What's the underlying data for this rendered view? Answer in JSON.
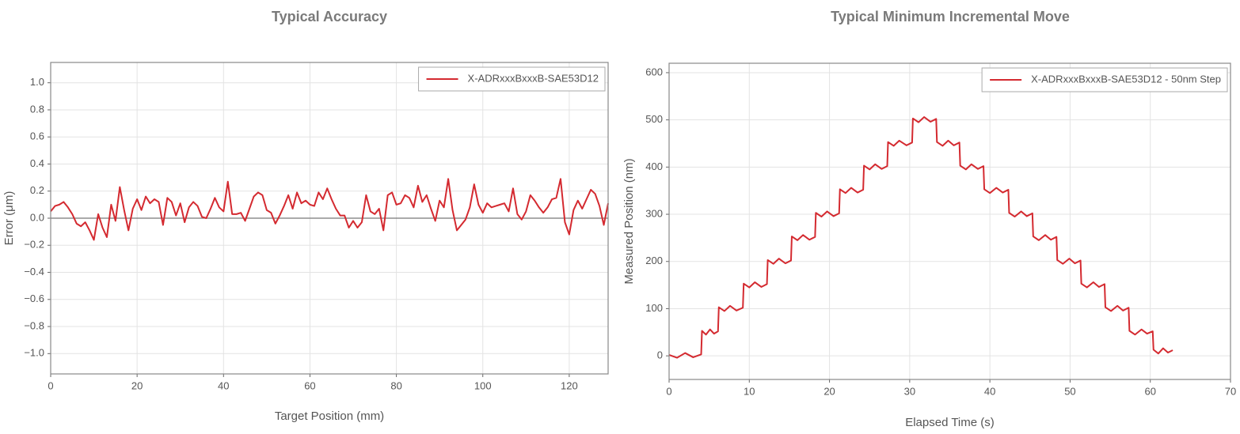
{
  "chart_data": [
    {
      "type": "line",
      "title": "Typical Accuracy",
      "x_label": "Target Position (mm)",
      "y_label": "Error (μm)",
      "xlim": [
        0,
        129
      ],
      "ylim": [
        -1.15,
        1.15
      ],
      "xticks": [
        0,
        20,
        40,
        60,
        80,
        100,
        120
      ],
      "yticks": [
        {
          "value": -1,
          "label": "−1.0"
        },
        {
          "value": -0.8,
          "label": "−0.8"
        },
        {
          "value": -0.6,
          "label": "−0.6"
        },
        {
          "value": -0.4,
          "label": "−0.4"
        },
        {
          "value": -0.2,
          "label": "−0.2"
        },
        {
          "value": 0,
          "label": "0.0"
        },
        0.2,
        0.4,
        0.6,
        0.8,
        {
          "value": 1,
          "label": "1.0"
        }
      ],
      "grid": true,
      "zero_line": true,
      "legend": "upper right",
      "x": [
        0,
        1,
        2,
        3,
        4,
        5,
        6,
        7,
        8,
        9,
        10,
        11,
        12,
        13,
        14,
        15,
        16,
        17,
        18,
        19,
        20,
        21,
        22,
        23,
        24,
        25,
        26,
        27,
        28,
        29,
        30,
        31,
        32,
        33,
        34,
        35,
        36,
        37,
        38,
        39,
        40,
        41,
        42,
        43,
        44,
        45,
        46,
        47,
        48,
        49,
        50,
        51,
        52,
        53,
        54,
        55,
        56,
        57,
        58,
        59,
        60,
        61,
        62,
        63,
        64,
        65,
        66,
        67,
        68,
        69,
        70,
        71,
        72,
        73,
        74,
        75,
        76,
        77,
        78,
        79,
        80,
        81,
        82,
        83,
        84,
        85,
        86,
        87,
        88,
        89,
        90,
        91,
        92,
        93,
        94,
        95,
        96,
        97,
        98,
        99,
        100,
        101,
        102,
        103,
        104,
        105,
        106,
        107,
        108,
        109,
        110,
        111,
        112,
        113,
        114,
        115,
        116,
        117,
        118,
        119,
        120,
        121,
        122,
        123,
        124,
        125,
        126,
        127,
        128,
        129
      ],
      "series": [
        {
          "name": "X-ADRxxxBxxxB-SAE53D12",
          "color": "#d42a30",
          "values": [
            0.05,
            0.09,
            0.1,
            0.12,
            0.08,
            0.03,
            -0.04,
            -0.06,
            -0.03,
            -0.09,
            -0.16,
            0.03,
            -0.07,
            -0.14,
            0.1,
            -0.02,
            0.23,
            0.06,
            -0.09,
            0.07,
            0.14,
            0.06,
            0.16,
            0.11,
            0.14,
            0.12,
            -0.05,
            0.15,
            0.12,
            0.02,
            0.11,
            -0.03,
            0.08,
            0.12,
            0.09,
            0.01,
            0,
            0.07,
            0.15,
            0.08,
            0.05,
            0.27,
            0.03,
            0.03,
            0.04,
            -0.02,
            0.07,
            0.16,
            0.19,
            0.17,
            0.06,
            0.04,
            -0.04,
            0.02,
            0.09,
            0.17,
            0.07,
            0.19,
            0.11,
            0.13,
            0.1,
            0.09,
            0.19,
            0.14,
            0.22,
            0.14,
            0.07,
            0.02,
            0.02,
            -0.07,
            -0.02,
            -0.07,
            -0.03,
            0.17,
            0.05,
            0.03,
            0.07,
            -0.09,
            0.17,
            0.19,
            0.1,
            0.11,
            0.17,
            0.15,
            0.08,
            0.24,
            0.12,
            0.17,
            0.07,
            -0.02,
            0.13,
            0.08,
            0.29,
            0.06,
            -0.09,
            -0.05,
            -0.01,
            0.08,
            0.25,
            0.1,
            0.04,
            0.11,
            0.08,
            0.09,
            0.1,
            0.11,
            0.05,
            0.22,
            0.03,
            -0.01,
            0.05,
            0.17,
            0.13,
            0.08,
            0.04,
            0.08,
            0.14,
            0.15,
            0.29,
            -0.03,
            -0.12,
            0.06,
            0.13,
            0.07,
            0.14,
            0.21,
            0.18,
            0.09,
            -0.05,
            0.11
          ]
        }
      ]
    },
    {
      "type": "line",
      "title": "Typical Minimum Incremental Move",
      "x_label": "Elapsed Time (s)",
      "y_label": "Measured Position (nm)",
      "xlim": [
        0,
        70
      ],
      "ylim": [
        -50,
        620
      ],
      "xticks": [
        0,
        10,
        20,
        30,
        40,
        50,
        60,
        70
      ],
      "yticks": [
        0,
        100,
        200,
        300,
        400,
        500,
        600
      ],
      "grid": true,
      "zero_line": false,
      "legend": "upper right",
      "x": [
        0,
        1,
        2,
        3,
        4.0,
        4.1,
        4.6,
        5.1,
        5.6,
        6.1,
        6.2,
        6.9,
        7.6,
        8.4,
        9.2,
        9.3,
        10.0,
        10.7,
        11.5,
        12.2,
        12.3,
        13.0,
        13.7,
        14.5,
        15.2,
        15.3,
        16.0,
        16.7,
        17.5,
        18.2,
        18.3,
        19.0,
        19.7,
        20.5,
        21.2,
        21.3,
        22.0,
        22.7,
        23.5,
        24.2,
        24.3,
        25.0,
        25.7,
        26.5,
        27.2,
        27.3,
        28.0,
        28.7,
        29.6,
        30.3,
        30.4,
        31.1,
        31.8,
        32.6,
        33.3,
        33.4,
        34.1,
        34.8,
        35.5,
        36.2,
        36.3,
        37.0,
        37.7,
        38.5,
        39.2,
        39.3,
        40.0,
        40.8,
        41.6,
        42.3,
        42.4,
        43.1,
        43.9,
        44.6,
        45.3,
        45.4,
        46.1,
        46.9,
        47.6,
        48.3,
        48.4,
        49.1,
        49.9,
        50.6,
        51.3,
        51.4,
        52.1,
        52.9,
        53.6,
        54.3,
        54.4,
        55.1,
        55.9,
        56.6,
        57.3,
        57.4,
        58.1,
        58.9,
        59.6,
        60.3,
        60.4,
        61.0,
        61.6,
        62.2,
        62.8
      ],
      "series": [
        {
          "name": "X-ADRxxxBxxxB-SAE53D12 - 50nm Step",
          "color": "#d42a30",
          "values": [
            2,
            -4,
            6,
            -3,
            3,
            53,
            45,
            56,
            47,
            52,
            103,
            95,
            106,
            96,
            102,
            153,
            145,
            156,
            146,
            152,
            203,
            195,
            206,
            196,
            202,
            253,
            245,
            256,
            246,
            252,
            303,
            295,
            306,
            296,
            302,
            353,
            345,
            356,
            346,
            352,
            403,
            395,
            406,
            396,
            402,
            453,
            445,
            456,
            446,
            452,
            503,
            495,
            506,
            496,
            502,
            453,
            445,
            456,
            446,
            452,
            403,
            395,
            406,
            396,
            402,
            353,
            345,
            356,
            346,
            352,
            303,
            295,
            306,
            296,
            302,
            253,
            245,
            256,
            246,
            252,
            203,
            195,
            206,
            196,
            202,
            153,
            145,
            156,
            146,
            152,
            103,
            95,
            106,
            96,
            102,
            53,
            45,
            56,
            47,
            52,
            13,
            5,
            16,
            7,
            12
          ]
        }
      ]
    }
  ]
}
